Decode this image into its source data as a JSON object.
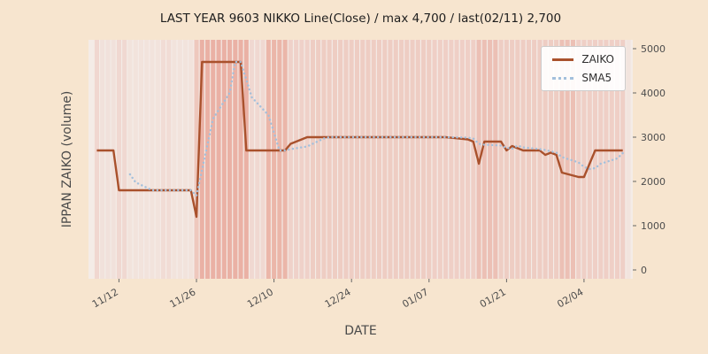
{
  "chart_data": {
    "type": "line",
    "title": "LAST YEAR 9603 NIKKO Line(Close) / max 4,700 / last(02/11) 2,700",
    "xlabel": "DATE",
    "ylabel": "IPPAN ZAIKO (volume)",
    "ylim": [
      0,
      5000
    ],
    "yticks": [
      0,
      1000,
      2000,
      3000,
      4000,
      5000
    ],
    "xticks": [
      "11/12",
      "11/26",
      "12/10",
      "12/24",
      "01/07",
      "01/21",
      "02/04"
    ],
    "legend_position": "upper right",
    "grid": false,
    "max_value": 4700,
    "last_value": 2700,
    "last_date": "02/11",
    "series": [
      {
        "name": "ZAIKO",
        "color": "#a9512c",
        "style": "solid",
        "points": [
          [
            "11/08",
            2700
          ],
          [
            "11/11",
            2700
          ],
          [
            "11/12",
            1800
          ],
          [
            "11/13",
            1800
          ],
          [
            "11/14",
            1800
          ],
          [
            "11/15",
            1800
          ],
          [
            "11/18",
            1800
          ],
          [
            "11/19",
            1800
          ],
          [
            "11/20",
            1800
          ],
          [
            "11/21",
            1800
          ],
          [
            "11/22",
            1800
          ],
          [
            "11/25",
            1800
          ],
          [
            "11/26",
            1200
          ],
          [
            "11/27",
            4700
          ],
          [
            "11/28",
            4700
          ],
          [
            "11/29",
            4700
          ],
          [
            "12/02",
            4700
          ],
          [
            "12/03",
            4700
          ],
          [
            "12/04",
            4700
          ],
          [
            "12/05",
            2700
          ],
          [
            "12/06",
            2700
          ],
          [
            "12/09",
            2700
          ],
          [
            "12/10",
            2700
          ],
          [
            "12/11",
            2700
          ],
          [
            "12/12",
            2700
          ],
          [
            "12/13",
            2850
          ],
          [
            "12/16",
            3000
          ],
          [
            "12/17",
            3000
          ],
          [
            "12/18",
            3000
          ],
          [
            "12/19",
            3000
          ],
          [
            "12/20",
            3000
          ],
          [
            "12/23",
            3000
          ],
          [
            "12/24",
            3000
          ],
          [
            "12/25",
            3000
          ],
          [
            "12/26",
            3000
          ],
          [
            "12/27",
            3000
          ],
          [
            "12/30",
            3000
          ],
          [
            "01/06",
            3000
          ],
          [
            "01/07",
            3000
          ],
          [
            "01/08",
            3000
          ],
          [
            "01/09",
            3000
          ],
          [
            "01/10",
            3000
          ],
          [
            "01/14",
            2950
          ],
          [
            "01/15",
            2900
          ],
          [
            "01/16",
            2400
          ],
          [
            "01/17",
            2900
          ],
          [
            "01/20",
            2900
          ],
          [
            "01/21",
            2700
          ],
          [
            "01/22",
            2800
          ],
          [
            "01/23",
            2750
          ],
          [
            "01/24",
            2700
          ],
          [
            "01/27",
            2700
          ],
          [
            "01/28",
            2600
          ],
          [
            "01/29",
            2650
          ],
          [
            "01/30",
            2600
          ],
          [
            "01/31",
            2200
          ],
          [
            "02/03",
            2100
          ],
          [
            "02/04",
            2100
          ],
          [
            "02/05",
            2400
          ],
          [
            "02/06",
            2700
          ],
          [
            "02/07",
            2700
          ],
          [
            "02/10",
            2700
          ],
          [
            "02/11",
            2700
          ]
        ]
      }
    ],
    "sma": {
      "name": "SMA5",
      "color": "#a3c0dc",
      "style": "dotted",
      "window": 5,
      "derived_from": "ZAIKO"
    },
    "background_bands": {
      "base_color": "#dd6b54",
      "ranges": [
        {
          "from": "11/08",
          "to": "11/09",
          "alpha": 0.16
        },
        {
          "from": "11/09",
          "to": "11/12",
          "alpha": 0.08
        },
        {
          "from": "11/12",
          "to": "11/14",
          "alpha": 0.15
        },
        {
          "from": "11/14",
          "to": "11/20",
          "alpha": 0.07
        },
        {
          "from": "11/20",
          "to": "11/22",
          "alpha": 0.12
        },
        {
          "from": "11/22",
          "to": "11/26",
          "alpha": 0.07
        },
        {
          "from": "11/26",
          "to": "11/27",
          "alpha": 0.28
        },
        {
          "from": "11/27",
          "to": "12/06",
          "alpha": 0.45
        },
        {
          "from": "12/06",
          "to": "12/09",
          "alpha": 0.15
        },
        {
          "from": "12/09",
          "to": "12/13",
          "alpha": 0.42
        },
        {
          "from": "12/13",
          "to": "12/17",
          "alpha": 0.2
        },
        {
          "from": "12/17",
          "to": "01/08",
          "alpha": 0.24
        },
        {
          "from": "01/08",
          "to": "01/16",
          "alpha": 0.22
        },
        {
          "from": "01/16",
          "to": "01/20",
          "alpha": 0.34
        },
        {
          "from": "01/20",
          "to": "01/31",
          "alpha": 0.24
        },
        {
          "from": "01/31",
          "to": "02/03",
          "alpha": 0.34
        },
        {
          "from": "02/03",
          "to": "02/12",
          "alpha": 0.22
        }
      ]
    },
    "colors": {
      "figure_bg": "#f7e5cf",
      "plot_bg": "#f4ece7",
      "tick_text": "#4d4d4d",
      "title_text": "#1e1e1e"
    }
  }
}
